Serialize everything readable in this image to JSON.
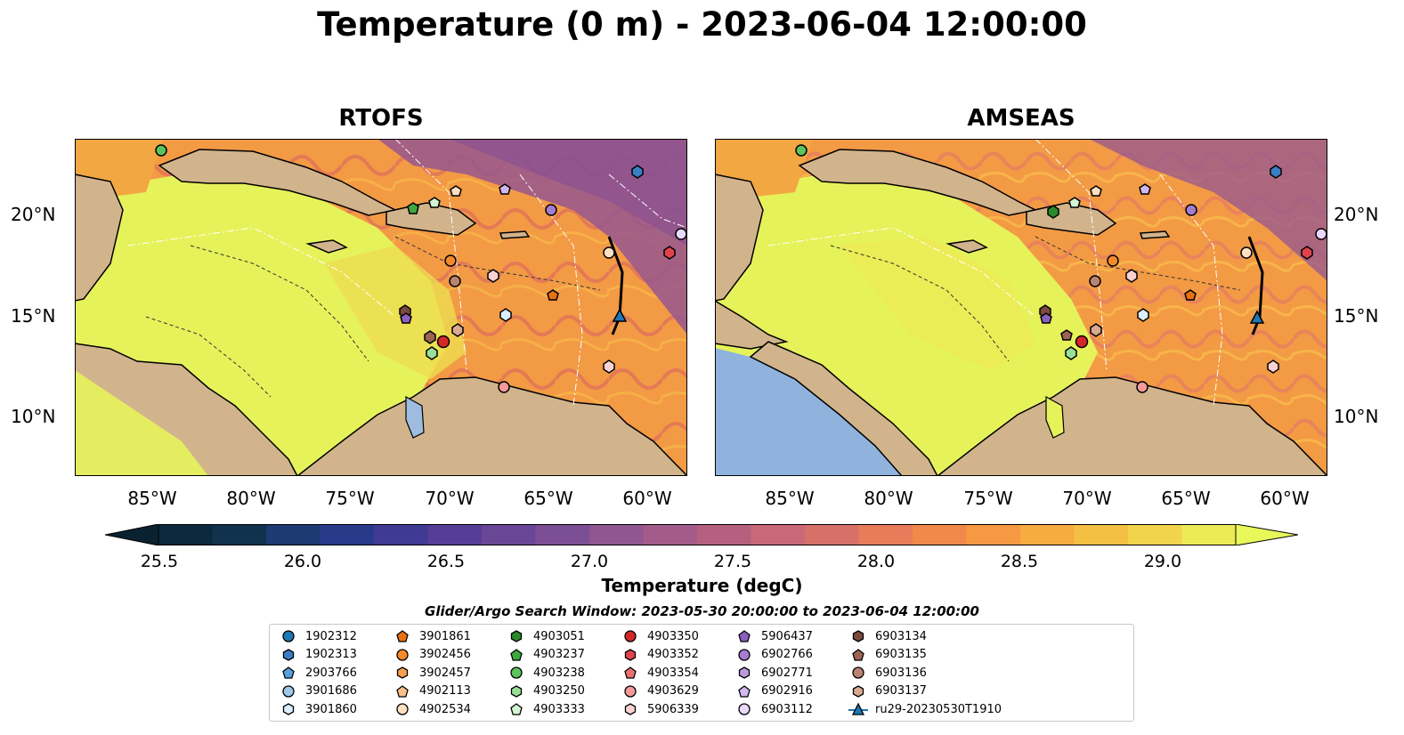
{
  "title": "Temperature (0 m) - 2023-06-04 12:00:00",
  "panels": [
    {
      "title": "RTOFS"
    },
    {
      "title": "AMSEAS"
    }
  ],
  "lat_ticks": [
    "20°N",
    "15°N",
    "10°N"
  ],
  "lon_ticks": [
    "85°W",
    "80°W",
    "75°W",
    "70°W",
    "65°W",
    "60°W"
  ],
  "colorbar": {
    "label": "Temperature (degC)",
    "ticks": [
      "25.5",
      "26.0",
      "26.5",
      "27.0",
      "27.5",
      "28.0",
      "28.5",
      "29.0"
    ],
    "colors": [
      "#0c2a3e",
      "#10324d",
      "#1d3a73",
      "#2a3a8a",
      "#3f3a94",
      "#563d96",
      "#6a4696",
      "#7c4e94",
      "#8f568f",
      "#a35b89",
      "#b66080",
      "#c86878",
      "#d8706a",
      "#e87c5a",
      "#f0894a",
      "#f59a43",
      "#f6ac40",
      "#f4c044",
      "#f2d44c",
      "#eceb55"
    ],
    "extend_low": "#0a2130",
    "extend_high": "#e8f75a"
  },
  "legend": {
    "title": "Glider/Argo Search Window: 2023-05-30 20:00:00 to 2023-06-04 12:00:00",
    "items": [
      {
        "label": "1902312",
        "marker": "circle",
        "color": "#1f77b4"
      },
      {
        "label": "1902313",
        "marker": "hexagon",
        "color": "#3a7fc4"
      },
      {
        "label": "2903766",
        "marker": "pentagon",
        "color": "#5aa0dc"
      },
      {
        "label": "3901686",
        "marker": "circle",
        "color": "#9cc8ec"
      },
      {
        "label": "3901860",
        "marker": "hexagon",
        "color": "#dbeeff"
      },
      {
        "label": "3901861",
        "marker": "pentagon",
        "color": "#e8700f"
      },
      {
        "label": "3902456",
        "marker": "circle",
        "color": "#f48a2a"
      },
      {
        "label": "3902457",
        "marker": "hexagon",
        "color": "#f7a04e"
      },
      {
        "label": "4902113",
        "marker": "pentagon",
        "color": "#fbc08a"
      },
      {
        "label": "4902534",
        "marker": "circle",
        "color": "#fde0c2"
      },
      {
        "label": "4903051",
        "marker": "hexagon",
        "color": "#2a8a2a"
      },
      {
        "label": "4903237",
        "marker": "pentagon",
        "color": "#3ea83e"
      },
      {
        "label": "4903238",
        "marker": "circle",
        "color": "#5cc45c"
      },
      {
        "label": "4903250",
        "marker": "hexagon",
        "color": "#98e098"
      },
      {
        "label": "4903333",
        "marker": "pentagon",
        "color": "#d2f5d2"
      },
      {
        "label": "4903350",
        "marker": "circle",
        "color": "#d62728"
      },
      {
        "label": "4903352",
        "marker": "hexagon",
        "color": "#e0444a"
      },
      {
        "label": "4903354",
        "marker": "pentagon",
        "color": "#ec7070"
      },
      {
        "label": "4903629",
        "marker": "circle",
        "color": "#f49a9a"
      },
      {
        "label": "5906339",
        "marker": "hexagon",
        "color": "#fbd2d2"
      },
      {
        "label": "5906437",
        "marker": "pentagon",
        "color": "#8a5fc0"
      },
      {
        "label": "6902766",
        "marker": "circle",
        "color": "#a47dd0"
      },
      {
        "label": "6902771",
        "marker": "hexagon",
        "color": "#bb9ae0"
      },
      {
        "label": "6902916",
        "marker": "pentagon",
        "color": "#d2b8f0"
      },
      {
        "label": "6903112",
        "marker": "circle",
        "color": "#ead8fc"
      },
      {
        "label": "6903134",
        "marker": "hexagon",
        "color": "#7b4a3e"
      },
      {
        "label": "6903135",
        "marker": "pentagon",
        "color": "#9c6452"
      },
      {
        "label": "6903136",
        "marker": "circle",
        "color": "#b88472"
      },
      {
        "label": "6903137",
        "marker": "hexagon",
        "color": "#dba890"
      },
      {
        "label": "ru29-20230530T1910",
        "marker": "triangle-line",
        "color": "#1f77b4"
      }
    ]
  }
}
